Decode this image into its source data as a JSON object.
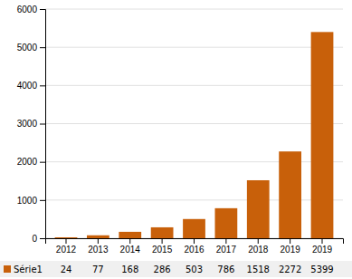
{
  "chart_data": {
    "type": "bar",
    "categories": [
      "2012",
      "2013",
      "2014",
      "2015",
      "2016",
      "2017",
      "2018",
      "2019",
      "2019"
    ],
    "series": [
      {
        "name": "Série1",
        "color": "#C8600A",
        "values": [
          24,
          77,
          168,
          286,
          503,
          786,
          1518,
          2272,
          5399
        ]
      }
    ],
    "ylim": [
      0,
      6000
    ],
    "yticks": [
      0,
      1000,
      2000,
      3000,
      4000,
      5000,
      6000
    ],
    "grid": true,
    "legend": "bottom",
    "data_labels": true
  }
}
